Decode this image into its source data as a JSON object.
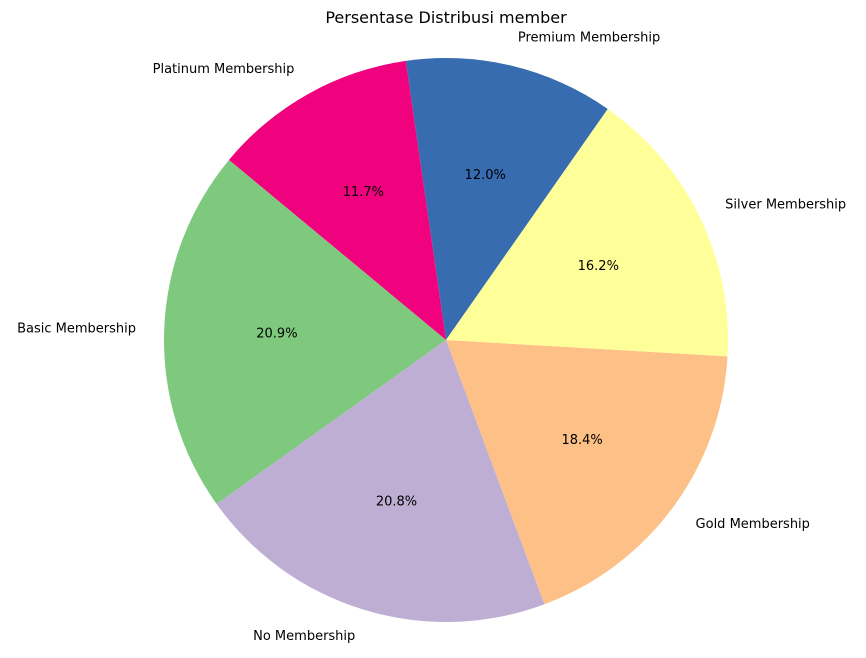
{
  "chart_data": {
    "type": "pie",
    "title": "Persentase Distribusi member",
    "categories": [
      "Premium Membership",
      "Platinum Membership",
      "Basic Membership",
      "No Membership",
      "Gold Membership",
      "Silver Membership"
    ],
    "values": [
      12.0,
      11.7,
      20.9,
      20.8,
      18.4,
      16.2
    ],
    "value_labels": [
      "12.0%",
      "11.7%",
      "20.9%",
      "20.8%",
      "18.4%",
      "16.2%"
    ],
    "colors": [
      "#386cb0",
      "#f0027f",
      "#7fc97f",
      "#beaed4",
      "#fdc086",
      "#ffff99"
    ],
    "start_angle_deg": 55,
    "direction": "counterclockwise",
    "legend": "none"
  }
}
